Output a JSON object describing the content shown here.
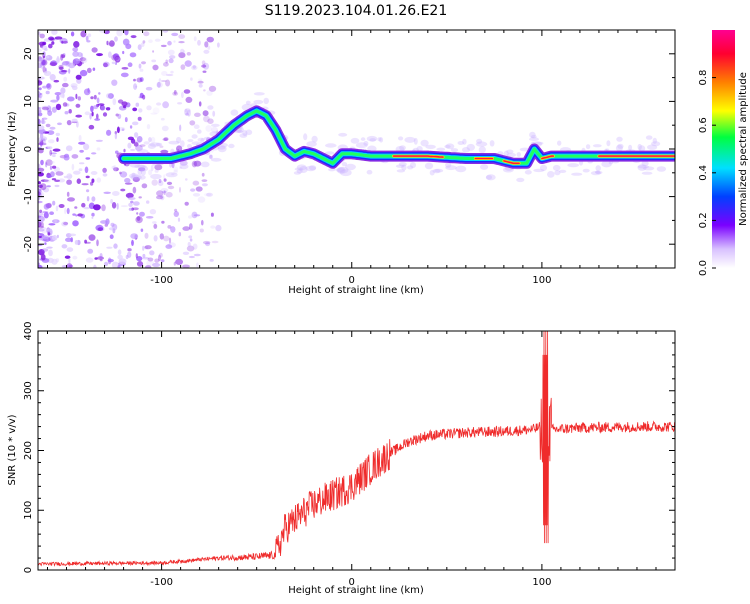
{
  "title": "S119.2023.104.01.26.E21",
  "colors": {
    "snr_line": "#ef2b2b",
    "ridge_low": "#8a2be2",
    "ridge_high": "#ff1a3c"
  },
  "chart_data": [
    {
      "type": "heatmap",
      "name": "spectrogram",
      "xlabel": "Height of straight line (km)",
      "ylabel": "Frequency (Hz)",
      "xlim": [
        -165,
        170
      ],
      "ylim": [
        -25,
        25
      ],
      "x_ticks": [
        -100,
        0,
        100
      ],
      "y_ticks": [
        -20,
        -10,
        0,
        10,
        20
      ],
      "grid": false,
      "ridge": {
        "x": [
          -120,
          -105,
          -95,
          -85,
          -78,
          -70,
          -62,
          -55,
          -50,
          -45,
          -40,
          -35,
          -30,
          -25,
          -20,
          -15,
          -10,
          -5,
          0,
          10,
          20,
          40,
          60,
          75,
          85,
          92,
          96,
          100,
          105,
          120,
          140,
          170
        ],
        "y": [
          -2,
          -2,
          -2,
          -1,
          0,
          2,
          5,
          7,
          8,
          7,
          4,
          0,
          -1.5,
          -0.5,
          -1,
          -2,
          -3,
          -1,
          -1,
          -1.5,
          -1.5,
          -1.5,
          -2,
          -2,
          -3,
          -3,
          0,
          -2,
          -1.5,
          -1.5,
          -1.5,
          -1.5
        ]
      },
      "colorbar": {
        "label": "Normalized spectral amplitude",
        "range": [
          0,
          1
        ],
        "ticks": [
          "0.0",
          "0.2",
          "0.4",
          "0.6",
          "0.8"
        ]
      }
    },
    {
      "type": "line",
      "name": "snr",
      "xlabel": "Height of straight line (km)",
      "ylabel": "SNR (10 * v/v)",
      "xlim": [
        -165,
        170
      ],
      "ylim": [
        0,
        400
      ],
      "x_ticks": [
        -100,
        0,
        100
      ],
      "y_ticks": [
        0,
        100,
        200,
        300,
        400
      ],
      "grid": false,
      "envelope": {
        "x": [
          -165,
          -100,
          -70,
          -50,
          -40,
          -35,
          -20,
          0,
          10,
          20,
          30,
          40,
          60,
          80,
          95,
          100,
          102,
          104,
          106,
          120,
          150,
          170
        ],
        "y": [
          10,
          12,
          20,
          22,
          25,
          70,
          110,
          140,
          170,
          195,
          215,
          225,
          230,
          232,
          235,
          240,
          230,
          235,
          235,
          238,
          240,
          240
        ]
      },
      "spike": {
        "x": 102,
        "max": 400,
        "min": 45
      }
    }
  ]
}
